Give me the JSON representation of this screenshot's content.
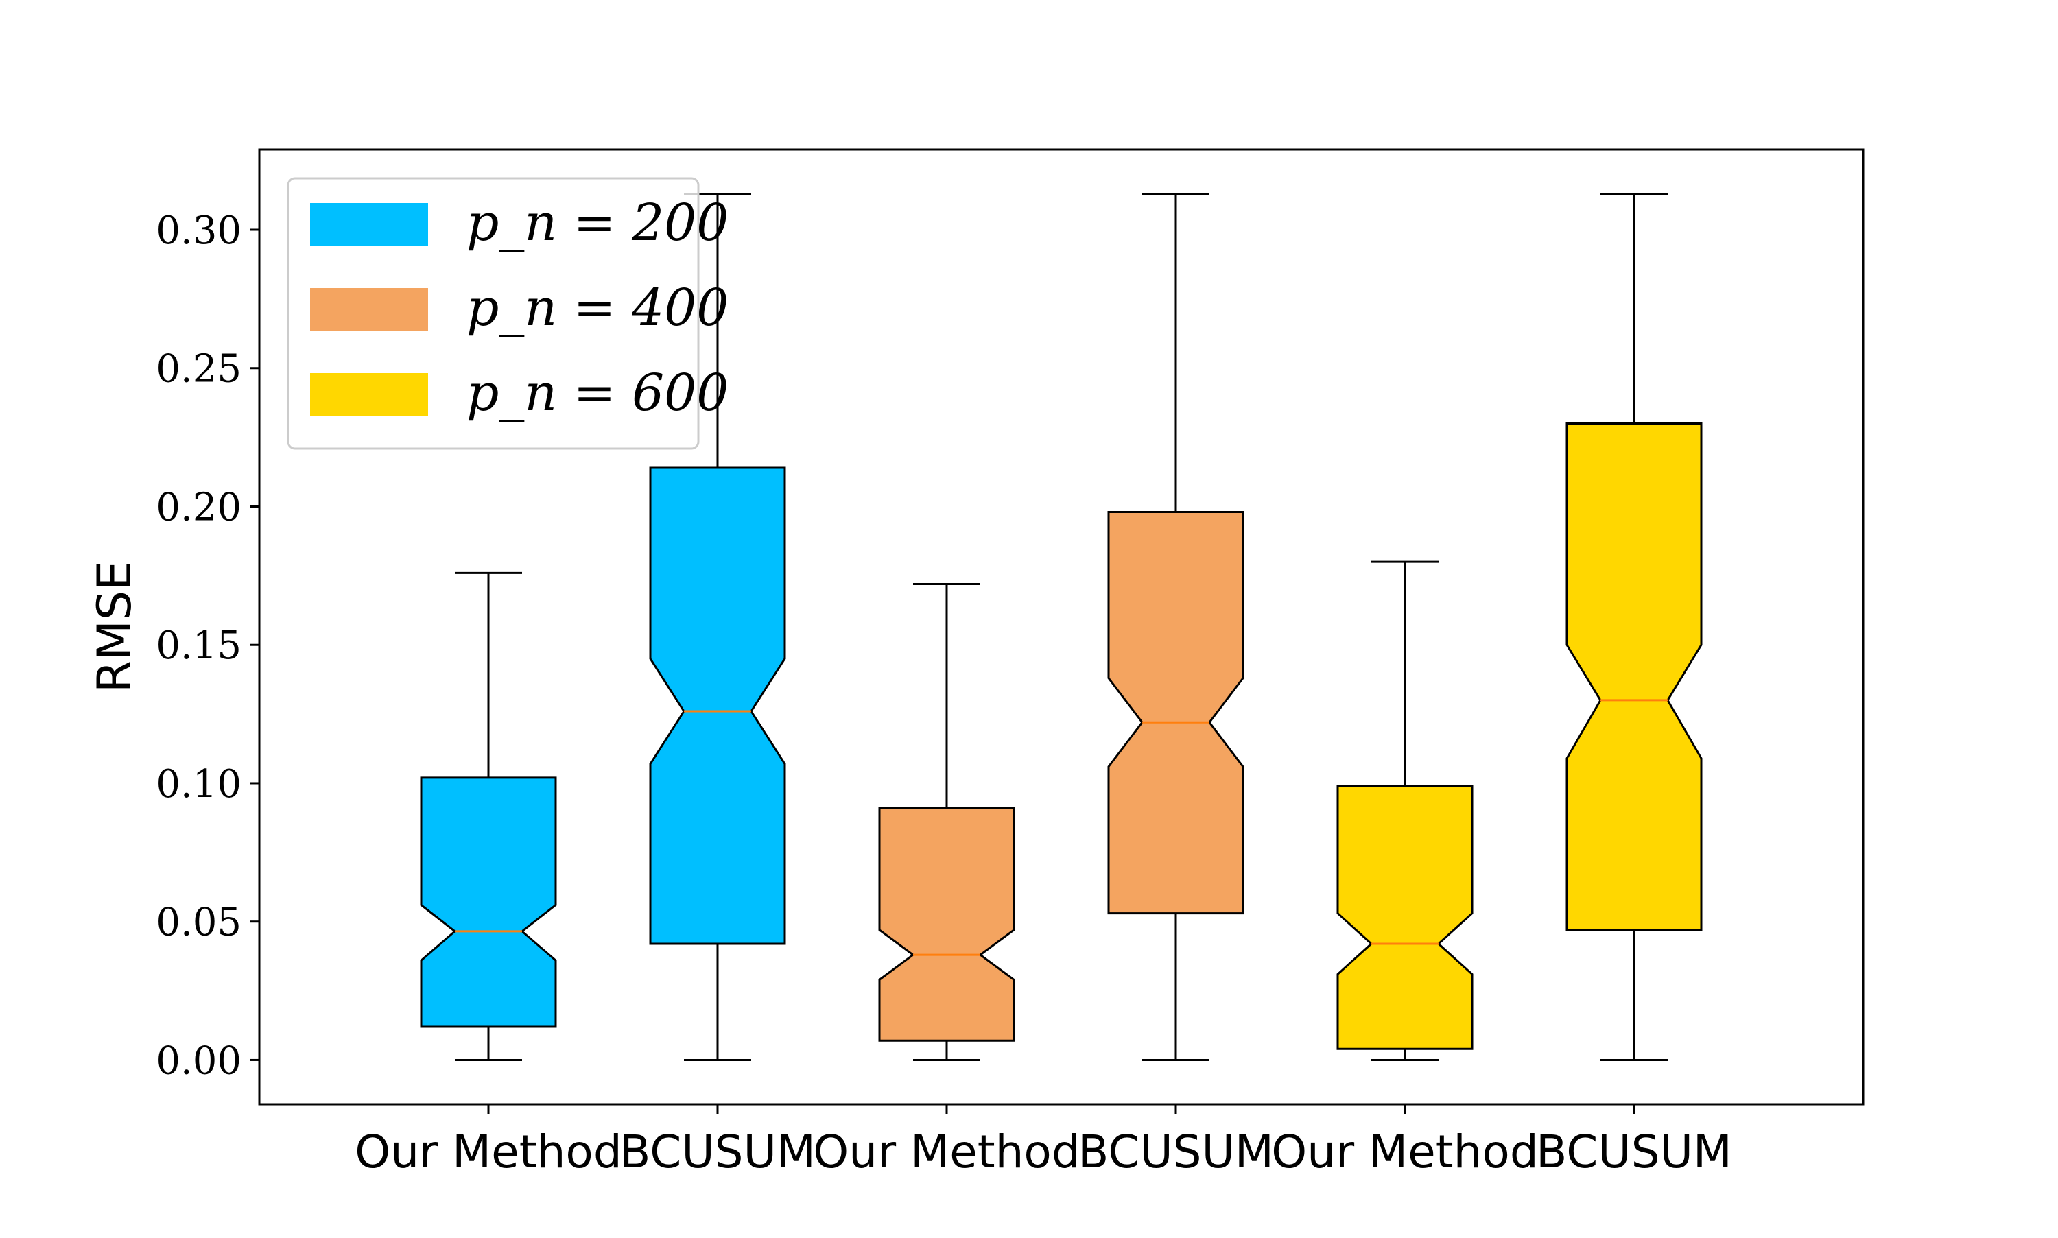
{
  "chart_data": {
    "type": "boxplot",
    "notched": true,
    "categories": [
      "Our Method",
      "BCUSUM",
      "Our Method",
      "BCUSUM",
      "Our Method",
      "BCUSUM"
    ],
    "ylabel": "RMSE",
    "ylim": [
      -0.016,
      0.329
    ],
    "yticks": [
      0.0,
      0.05,
      0.1,
      0.15,
      0.2,
      0.25,
      0.3
    ],
    "ytick_labels": [
      "0.00",
      "0.05",
      "0.10",
      "0.15",
      "0.20",
      "0.25",
      "0.30"
    ],
    "grid": false,
    "legend_position": "top-left",
    "median_color": "#ff7f0e",
    "series": [
      {
        "name": "p_n = 200",
        "legend_label": "p_n = 200",
        "color": "#00bfff",
        "boxes": [
          0,
          1
        ]
      },
      {
        "name": "p_n = 400",
        "legend_label": "p_n = 400",
        "color": "#f4a460",
        "boxes": [
          2,
          3
        ]
      },
      {
        "name": "p_n = 600",
        "legend_label": "p_n = 600",
        "color": "#ffd700",
        "boxes": [
          4,
          5
        ]
      }
    ],
    "boxes": [
      {
        "category": "Our Method",
        "series": "p_n = 200",
        "whisker_low": 0.0,
        "q1": 0.012,
        "median": 0.0465,
        "q3": 0.102,
        "whisker_high": 0.176,
        "notch_low": 0.036,
        "notch_high": 0.056
      },
      {
        "category": "BCUSUM",
        "series": "p_n = 200",
        "whisker_low": 0.0,
        "q1": 0.042,
        "median": 0.126,
        "q3": 0.214,
        "whisker_high": 0.313,
        "notch_low": 0.107,
        "notch_high": 0.145
      },
      {
        "category": "Our Method",
        "series": "p_n = 400",
        "whisker_low": 0.0,
        "q1": 0.007,
        "median": 0.038,
        "q3": 0.091,
        "whisker_high": 0.172,
        "notch_low": 0.029,
        "notch_high": 0.047
      },
      {
        "category": "BCUSUM",
        "series": "p_n = 400",
        "whisker_low": 0.0,
        "q1": 0.053,
        "median": 0.122,
        "q3": 0.198,
        "whisker_high": 0.313,
        "notch_low": 0.106,
        "notch_high": 0.138
      },
      {
        "category": "Our Method",
        "series": "p_n = 600",
        "whisker_low": 0.0,
        "q1": 0.004,
        "median": 0.042,
        "q3": 0.099,
        "whisker_high": 0.18,
        "notch_low": 0.031,
        "notch_high": 0.053
      },
      {
        "category": "BCUSUM",
        "series": "p_n = 600",
        "whisker_low": 0.0,
        "q1": 0.047,
        "median": 0.13,
        "q3": 0.23,
        "whisker_high": 0.313,
        "notch_low": 0.109,
        "notch_high": 0.15
      }
    ]
  }
}
